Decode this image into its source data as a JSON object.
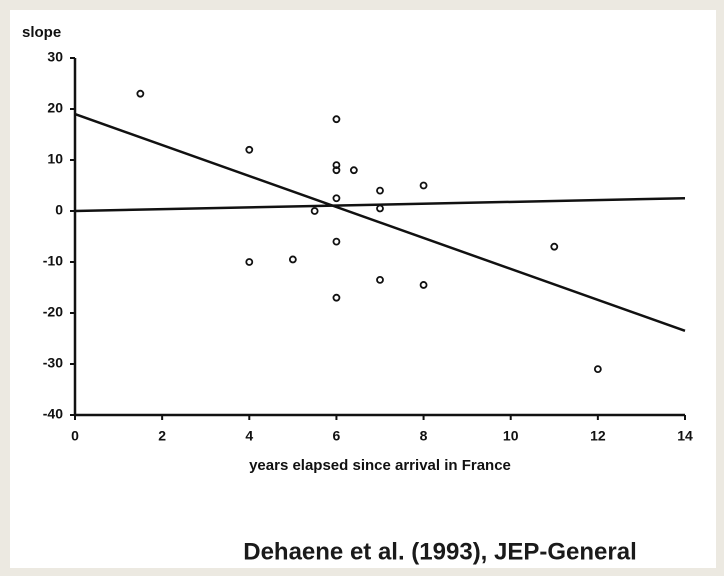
{
  "chart_data": {
    "type": "scatter",
    "y_label": "slope",
    "x_label": "years elapsed since arrival in France",
    "annotation": "Dehaene et al. (1993), JEP-General",
    "x": [
      1.5,
      4,
      4,
      5,
      5.5,
      6,
      6,
      6,
      6,
      6,
      6,
      6.4,
      7,
      7,
      7,
      8,
      8,
      11,
      12
    ],
    "values": [
      23,
      12,
      -10,
      -9.5,
      0,
      18,
      9,
      8,
      2.5,
      -6,
      -17,
      8,
      4,
      0.5,
      -13.5,
      5,
      -14.5,
      -7,
      -31
    ],
    "color": "#111111",
    "lines": [
      {
        "x": [
          0,
          14
        ],
        "values": [
          19,
          -23.5
        ]
      },
      {
        "x": [
          0,
          14
        ],
        "values": [
          0,
          2.5
        ]
      }
    ],
    "xlim": [
      0,
      14
    ],
    "xticks": [
      0,
      2,
      4,
      6,
      8,
      10,
      12,
      14
    ],
    "ylim": [
      -40,
      30
    ],
    "yticks": [
      -40,
      -30,
      -20,
      -10,
      0,
      10,
      20,
      30
    ]
  }
}
